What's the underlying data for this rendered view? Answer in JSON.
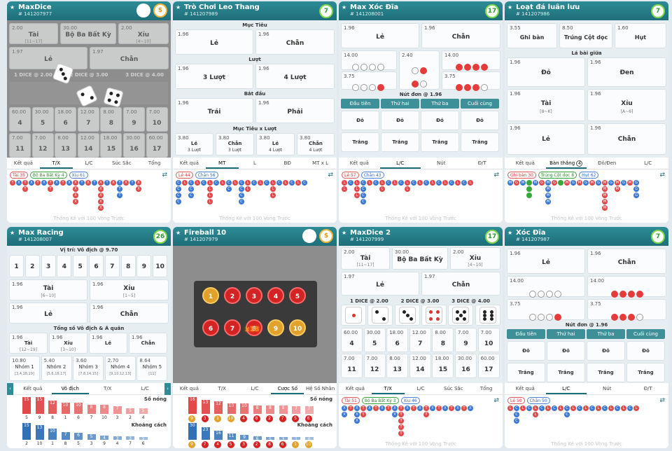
{
  "footer_text": "Thống Kê với 100 Vòng Trước",
  "c1": {
    "title": "MaxDice",
    "id": "# 141207977",
    "tabs": [
      "Kết quả",
      "T/X",
      "L/C",
      "Súc Sắc",
      "Tổng"
    ],
    "pills": [
      "Tài 35",
      "Bộ Ba Bất Kỳ 4",
      "Xỉu 61"
    ],
    "cells": [
      {
        "o": "2.00",
        "n": "Tài",
        "s": "[11~17]"
      },
      {
        "o": "30.00",
        "n": "Bộ Ba Bất Kỳ",
        "s": ""
      },
      {
        "o": "2.00",
        "n": "Xỉu",
        "s": "[4~10]"
      },
      {
        "o": "1.97",
        "n": "Lẻ",
        "s": ""
      },
      {
        "o": "1.97",
        "n": "Chẵn",
        "s": ""
      }
    ],
    "dice_labels": [
      "1 DICE @ 2.00",
      "2 DICE @ 3.00",
      "3 DICE @ 4.00"
    ],
    "totals": [
      {
        "o": "60.00",
        "n": "4"
      },
      {
        "o": "30.00",
        "n": "5"
      },
      {
        "o": "18.00",
        "n": "6"
      },
      {
        "o": "12.00",
        "n": "7"
      },
      {
        "o": "8.00",
        "n": "8"
      },
      {
        "o": "7.00",
        "n": "9"
      },
      {
        "o": "7.00",
        "n": "10"
      },
      {
        "o": "7.00",
        "n": "11"
      },
      {
        "o": "7.00",
        "n": "12"
      },
      {
        "o": "8.00",
        "n": "13"
      },
      {
        "o": "12.00",
        "n": "14"
      },
      {
        "o": "18.00",
        "n": "15"
      },
      {
        "o": "30.00",
        "n": "16"
      },
      {
        "o": "60.00",
        "n": "17"
      }
    ]
  },
  "c2": {
    "title": "Trò Chơi Leo Thang",
    "id": "# 141207989",
    "badge": "7",
    "tabs": [
      "Kết quả",
      "MT",
      "L",
      "BĐ",
      "MT x L"
    ],
    "pills": [
      "Lẻ 44",
      "Chẵn 56"
    ],
    "sections": [
      "Mục Tiêu",
      "Lượt",
      "Bắt đầu",
      "Mục Tiêu x Lượt"
    ],
    "cells": [
      {
        "o": "1.96",
        "n": "Lẻ"
      },
      {
        "o": "1.96",
        "n": "Chẵn"
      },
      {
        "o": "1.96",
        "n": "3 Lượt"
      },
      {
        "o": "1.96",
        "n": "4 Lượt"
      },
      {
        "o": "1.96",
        "n": "Trái"
      },
      {
        "o": "1.96",
        "n": "Phải"
      }
    ],
    "combo": [
      {
        "o": "3.80",
        "n": "Lẻ",
        "s": "3 Lượt"
      },
      {
        "o": "3.80",
        "n": "Chẵn",
        "s": "3 Lượt"
      },
      {
        "o": "3.80",
        "n": "Lẻ",
        "s": "4 Lượt"
      },
      {
        "o": "3.80",
        "n": "Chẵn",
        "s": "4 Lượt"
      }
    ]
  },
  "c3": {
    "title": "Max Xóc Đĩa",
    "id": "# 141208001",
    "badge": "17",
    "tabs": [
      "Kết quả",
      "L/C",
      "Nút",
      "Đ/T"
    ],
    "pills": [
      "Lẻ 57",
      "Chẵn 43"
    ],
    "cells": [
      {
        "o": "1.96",
        "n": "Lẻ"
      },
      {
        "o": "1.96",
        "n": "Chẵn"
      }
    ],
    "odds": [
      "14.00",
      "2.40",
      "14.00",
      "3.75",
      "3.75"
    ],
    "section": "Nút đơn @ 1.96",
    "btn_tabs": [
      "Đầu tiên",
      "Thứ hai",
      "Thứ ba",
      "Cuối cùng"
    ],
    "do": "Đỏ",
    "trang": "Trắng"
  },
  "c4": {
    "title": "Loạt đá luân lưu",
    "id": "# 141207986",
    "badge": "7",
    "tabs": [
      "Kết quả",
      "Bàn thắng",
      "Đỏ/Đen",
      "L/C"
    ],
    "tab_badge": "4",
    "pills": [
      "Ghi bàn 30",
      "Trúng Cột dọc 8",
      "Hụt 62"
    ],
    "top": [
      {
        "o": "3.55",
        "n": "Ghi bàn"
      },
      {
        "o": "8.50",
        "n": "Trúng Cột dọc"
      },
      {
        "o": "1.60",
        "n": "Hụt"
      }
    ],
    "section": "Lá bài giữa",
    "cells": [
      {
        "o": "1.96",
        "n": "Đỏ",
        "s": ""
      },
      {
        "o": "1.96",
        "n": "Đen",
        "s": ""
      },
      {
        "o": "1.96",
        "n": "Tài",
        "s": "[8~K]"
      },
      {
        "o": "1.96",
        "n": "Xỉu",
        "s": "[A~6]"
      },
      {
        "o": "1.96",
        "n": "Lẻ",
        "s": ""
      },
      {
        "o": "1.96",
        "n": "Chẵn",
        "s": ""
      }
    ]
  },
  "c5": {
    "title": "Max Racing",
    "id": "# 141208007",
    "badge": "26",
    "tabs": [
      "Kết quả",
      "Vô địch",
      "T/X",
      "L/C"
    ],
    "section1": "Vị trí: Vô địch @ 9.70",
    "nums": [
      "1",
      "2",
      "3",
      "4",
      "5",
      "6",
      "7",
      "8",
      "9",
      "10"
    ],
    "cells": [
      {
        "o": "1.96",
        "n": "Tài",
        "s": "[6~10]"
      },
      {
        "o": "1.96",
        "n": "Xỉu",
        "s": "[1~5]"
      },
      {
        "o": "1.96",
        "n": "Lẻ",
        "s": ""
      },
      {
        "o": "1.96",
        "n": "Chẵn",
        "s": ""
      }
    ],
    "section2": "Tổng số Vô địch & Á quân",
    "small": [
      {
        "o": "1.96",
        "n": "Tài",
        "s": "[12~19]"
      },
      {
        "o": "1.96",
        "n": "Xỉu",
        "s": "[3~10]"
      },
      {
        "o": "1.96",
        "n": "Lẻ",
        "s": ""
      },
      {
        "o": "1.96",
        "n": "Chẵn",
        "s": ""
      }
    ],
    "groups": [
      {
        "o": "10.80",
        "n": "Nhóm 1",
        "s": "[3,4,18,19]"
      },
      {
        "o": "5.40",
        "n": "Nhóm 2",
        "s": "[5,6,16,17]"
      },
      {
        "o": "3.60",
        "n": "Nhóm 3",
        "s": "[7,8,14,15]"
      },
      {
        "o": "2.70",
        "n": "Nhóm 4",
        "s": "[9,10,12,13]"
      },
      {
        "o": "8.64",
        "n": "Nhóm 5",
        "s": "[11]"
      }
    ],
    "hot_label": "Số nóng",
    "cold_label": "Khoảng cách",
    "hot": [
      15,
      15,
      12,
      10,
      10,
      8,
      8,
      7,
      5,
      5
    ],
    "hot_nums": [
      "5",
      "9",
      "8",
      "1",
      "6",
      "7",
      "10",
      "3",
      "2",
      "4"
    ],
    "cold": [
      15,
      13,
      10,
      7,
      6,
      5,
      4,
      3,
      3,
      2
    ],
    "cold_nums": [
      "2",
      "10",
      "1",
      "8",
      "5",
      "3",
      "9",
      "4",
      "7",
      "6"
    ]
  },
  "c6": {
    "title": "Fireball 10",
    "id": "# 141207979",
    "tabs": [
      "Kết quả",
      "T/X",
      "L/C",
      "Cược Số",
      "Hệ Số Nhân"
    ],
    "mult": "x18",
    "balls": [
      "1",
      "2",
      "3",
      "4",
      "5",
      "6",
      "7",
      "8",
      "9",
      "10"
    ],
    "hot_label": "Số nóng",
    "cold_label": "Khoảng cách",
    "hot": [
      16,
      13,
      12,
      10,
      10,
      8,
      8,
      8,
      7,
      7
    ],
    "hot_nums": [
      "9",
      "3",
      "1",
      "10",
      "4",
      "8",
      "2",
      "7",
      "5",
      "6"
    ],
    "cold": [
      30,
      23,
      16,
      11,
      9,
      6,
      5,
      3,
      1,
      0
    ],
    "cold_nums": [
      "9",
      "7",
      "4",
      "5",
      "3",
      "2",
      "8",
      "6",
      "1",
      "10"
    ]
  },
  "c7": {
    "title": "MaxDice 2",
    "id": "# 141207999",
    "badge": "17",
    "tabs": [
      "Kết quả",
      "T/X",
      "L/C",
      "Súc Sắc",
      "Tổng"
    ],
    "pills": [
      "Tài 51",
      "Bộ Ba Bất Kỳ 3",
      "Xỉu 46"
    ],
    "cells": [
      {
        "o": "2.00",
        "n": "Tài",
        "s": "[11~17]"
      },
      {
        "o": "30.00",
        "n": "Bộ Ba Bất Kỳ",
        "s": ""
      },
      {
        "o": "2.00",
        "n": "Xỉu",
        "s": "[4~10]"
      },
      {
        "o": "1.97",
        "n": "Lẻ",
        "s": ""
      },
      {
        "o": "1.97",
        "n": "Chẵn",
        "s": ""
      }
    ],
    "dice_labels": [
      "1 DICE @ 2.00",
      "2 DICE @ 3.00",
      "3 DICE @ 4.00"
    ],
    "totals": [
      {
        "o": "60.00",
        "n": "4"
      },
      {
        "o": "30.00",
        "n": "5"
      },
      {
        "o": "18.00",
        "n": "6"
      },
      {
        "o": "12.00",
        "n": "7"
      },
      {
        "o": "8.00",
        "n": "8"
      },
      {
        "o": "7.00",
        "n": "9"
      },
      {
        "o": "7.00",
        "n": "10"
      },
      {
        "o": "7.00",
        "n": "11"
      },
      {
        "o": "7.00",
        "n": "12"
      },
      {
        "o": "8.00",
        "n": "13"
      },
      {
        "o": "12.00",
        "n": "14"
      },
      {
        "o": "18.00",
        "n": "15"
      },
      {
        "o": "30.00",
        "n": "16"
      },
      {
        "o": "60.00",
        "n": "17"
      }
    ]
  },
  "c8": {
    "title": "Xóc Đĩa",
    "id": "# 141207987",
    "badge": "7",
    "tabs": [
      "Kết quả",
      "L/C",
      "Nút",
      "Đ/T"
    ],
    "pills": [
      "Lẻ 50",
      "Chẵn 50"
    ],
    "cells": [
      {
        "o": "1.96",
        "n": "Lẻ"
      },
      {
        "o": "1.96",
        "n": "Chẵn"
      }
    ],
    "odds": [
      "14.00",
      "14.00",
      "3.75",
      "3.75"
    ],
    "section": "Nút đơn @ 1.96",
    "btn_tabs": [
      "Đầu tiên",
      "Thứ hai",
      "Thứ ba",
      "Cuối cùng"
    ],
    "do": "Đỏ",
    "trang": "Trắng"
  }
}
